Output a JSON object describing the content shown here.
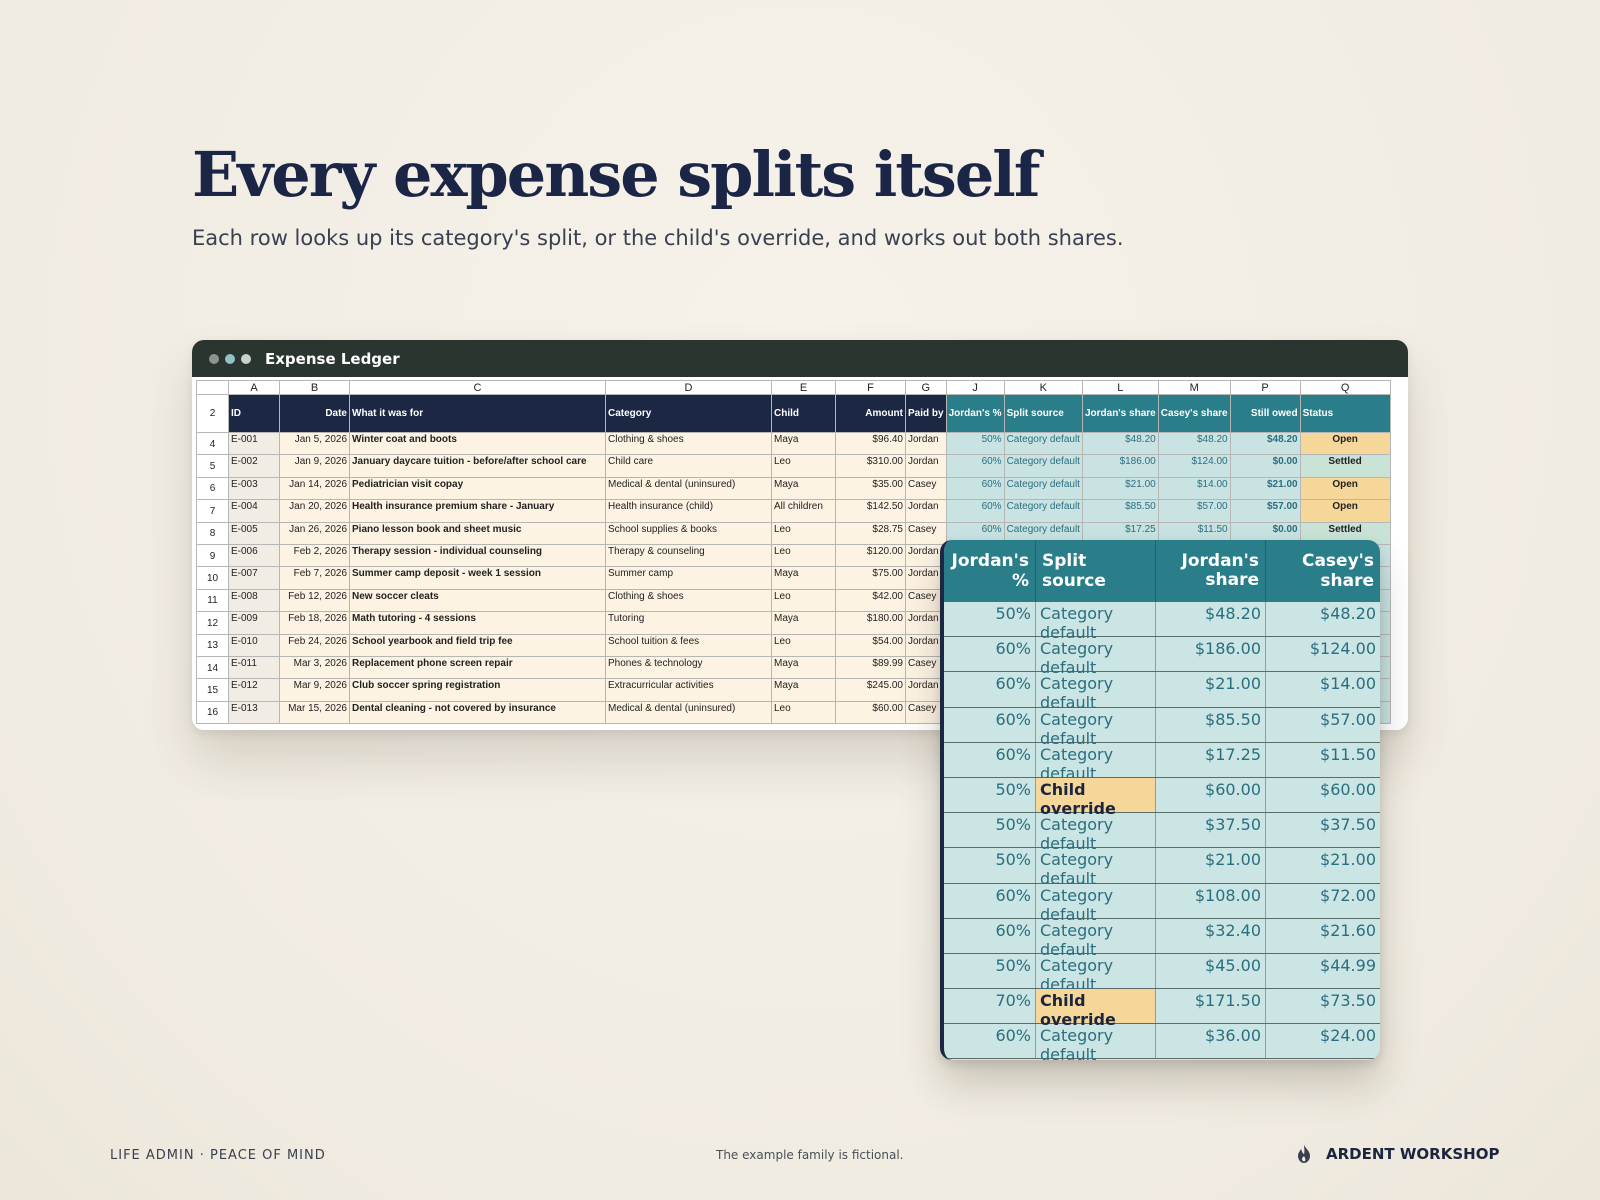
{
  "headline": "Every expense splits itself",
  "subtitle": "Each row looks up its category's split, or the child's override, and works out both shares.",
  "window": {
    "title": "Expense Ledger"
  },
  "sheet": {
    "columns": [
      "A",
      "B",
      "C",
      "D",
      "E",
      "F",
      "G",
      "J",
      "K",
      "L",
      "M",
      "P",
      "Q"
    ],
    "header_row_num": "2",
    "headers": [
      "ID",
      "Date",
      "What it was for",
      "Category",
      "Child",
      "Amount",
      "Paid by",
      "Jordan's %",
      "Split source",
      "Jordan's share",
      "Casey's share",
      "Still owed",
      "Status"
    ],
    "rows": [
      {
        "n": "4",
        "id": "E-001",
        "date": "Jan 5, 2026",
        "what": "Winter coat and boots",
        "cat": "Clothing & shoes",
        "child": "Maya",
        "amt": "$96.40",
        "paid": "Jordan",
        "pct": "50%",
        "src": "Category default",
        "js": "$48.20",
        "cs": "$48.20",
        "owed": "$48.20",
        "status": "Open"
      },
      {
        "n": "5",
        "id": "E-002",
        "date": "Jan 9, 2026",
        "what": "January daycare tuition - before/after school care",
        "cat": "Child care",
        "child": "Leo",
        "amt": "$310.00",
        "paid": "Jordan",
        "pct": "60%",
        "src": "Category default",
        "js": "$186.00",
        "cs": "$124.00",
        "owed": "$0.00",
        "status": "Settled"
      },
      {
        "n": "6",
        "id": "E-003",
        "date": "Jan 14, 2026",
        "what": "Pediatrician visit copay",
        "cat": "Medical & dental (uninsured)",
        "child": "Maya",
        "amt": "$35.00",
        "paid": "Casey",
        "pct": "60%",
        "src": "Category default",
        "js": "$21.00",
        "cs": "$14.00",
        "owed": "$21.00",
        "status": "Open"
      },
      {
        "n": "7",
        "id": "E-004",
        "date": "Jan 20, 2026",
        "what": "Health insurance premium share - January",
        "cat": "Health insurance (child)",
        "child": "All children",
        "amt": "$142.50",
        "paid": "Jordan",
        "pct": "60%",
        "src": "Category default",
        "js": "$85.50",
        "cs": "$57.00",
        "owed": "$57.00",
        "status": "Open"
      },
      {
        "n": "8",
        "id": "E-005",
        "date": "Jan 26, 2026",
        "what": "Piano lesson book and sheet music",
        "cat": "School supplies & books",
        "child": "Leo",
        "amt": "$28.75",
        "paid": "Casey",
        "pct": "60%",
        "src": "Category default",
        "js": "$17.25",
        "cs": "$11.50",
        "owed": "$0.00",
        "status": "Settled"
      },
      {
        "n": "9",
        "id": "E-006",
        "date": "Feb 2, 2026",
        "what": "Therapy session - individual counseling",
        "cat": "Therapy & counseling",
        "child": "Leo",
        "amt": "$120.00",
        "paid": "Jordan"
      },
      {
        "n": "10",
        "id": "E-007",
        "date": "Feb 7, 2026",
        "what": "Summer camp deposit - week 1 session",
        "cat": "Summer camp",
        "child": "Maya",
        "amt": "$75.00",
        "paid": "Jordan"
      },
      {
        "n": "11",
        "id": "E-008",
        "date": "Feb 12, 2026",
        "what": "New soccer cleats",
        "cat": "Clothing & shoes",
        "child": "Leo",
        "amt": "$42.00",
        "paid": "Casey"
      },
      {
        "n": "12",
        "id": "E-009",
        "date": "Feb 18, 2026",
        "what": "Math tutoring - 4 sessions",
        "cat": "Tutoring",
        "child": "Maya",
        "amt": "$180.00",
        "paid": "Jordan"
      },
      {
        "n": "13",
        "id": "E-010",
        "date": "Feb 24, 2026",
        "what": "School yearbook and field trip fee",
        "cat": "School tuition & fees",
        "child": "Leo",
        "amt": "$54.00",
        "paid": "Jordan"
      },
      {
        "n": "14",
        "id": "E-011",
        "date": "Mar 3, 2026",
        "what": "Replacement phone screen repair",
        "cat": "Phones & technology",
        "child": "Maya",
        "amt": "$89.99",
        "paid": "Casey"
      },
      {
        "n": "15",
        "id": "E-012",
        "date": "Mar 9, 2026",
        "what": "Club soccer spring registration",
        "cat": "Extracurricular activities",
        "child": "Maya",
        "amt": "$245.00",
        "paid": "Jordan"
      },
      {
        "n": "16",
        "id": "E-013",
        "date": "Mar 15, 2026",
        "what": "Dental cleaning - not covered by insurance",
        "cat": "Medical & dental (uninsured)",
        "child": "Leo",
        "amt": "$60.00",
        "paid": "Casey"
      }
    ]
  },
  "zoom": {
    "headers": [
      "Jordan's %",
      "Split source",
      "Jordan's share",
      "Casey's share"
    ],
    "rows": [
      {
        "pct": "50%",
        "src": "Category default",
        "js": "$48.20",
        "cs": "$48.20"
      },
      {
        "pct": "60%",
        "src": "Category default",
        "js": "$186.00",
        "cs": "$124.00"
      },
      {
        "pct": "60%",
        "src": "Category default",
        "js": "$21.00",
        "cs": "$14.00"
      },
      {
        "pct": "60%",
        "src": "Category default",
        "js": "$85.50",
        "cs": "$57.00"
      },
      {
        "pct": "60%",
        "src": "Category default",
        "js": "$17.25",
        "cs": "$11.50"
      },
      {
        "pct": "50%",
        "src": "Child override",
        "js": "$60.00",
        "cs": "$60.00"
      },
      {
        "pct": "50%",
        "src": "Category default",
        "js": "$37.50",
        "cs": "$37.50"
      },
      {
        "pct": "50%",
        "src": "Category default",
        "js": "$21.00",
        "cs": "$21.00"
      },
      {
        "pct": "60%",
        "src": "Category default",
        "js": "$108.00",
        "cs": "$72.00"
      },
      {
        "pct": "60%",
        "src": "Category default",
        "js": "$32.40",
        "cs": "$21.60"
      },
      {
        "pct": "50%",
        "src": "Category default",
        "js": "$45.00",
        "cs": "$44.99"
      },
      {
        "pct": "70%",
        "src": "Child override",
        "js": "$171.50",
        "cs": "$73.50"
      },
      {
        "pct": "60%",
        "src": "Category default",
        "js": "$36.00",
        "cs": "$24.00"
      }
    ]
  },
  "footer": {
    "left": "LIFE ADMIN · PEACE OF MIND",
    "middle": "The example family is fictional.",
    "brand": "ARDENT WORKSHOP",
    "logo_icon": "flame-logo-icon"
  },
  "colors": {
    "navy": "#1c2744",
    "teal": "#2a7e8a",
    "open": "#f6d79a",
    "settled": "#c9e3d6"
  }
}
